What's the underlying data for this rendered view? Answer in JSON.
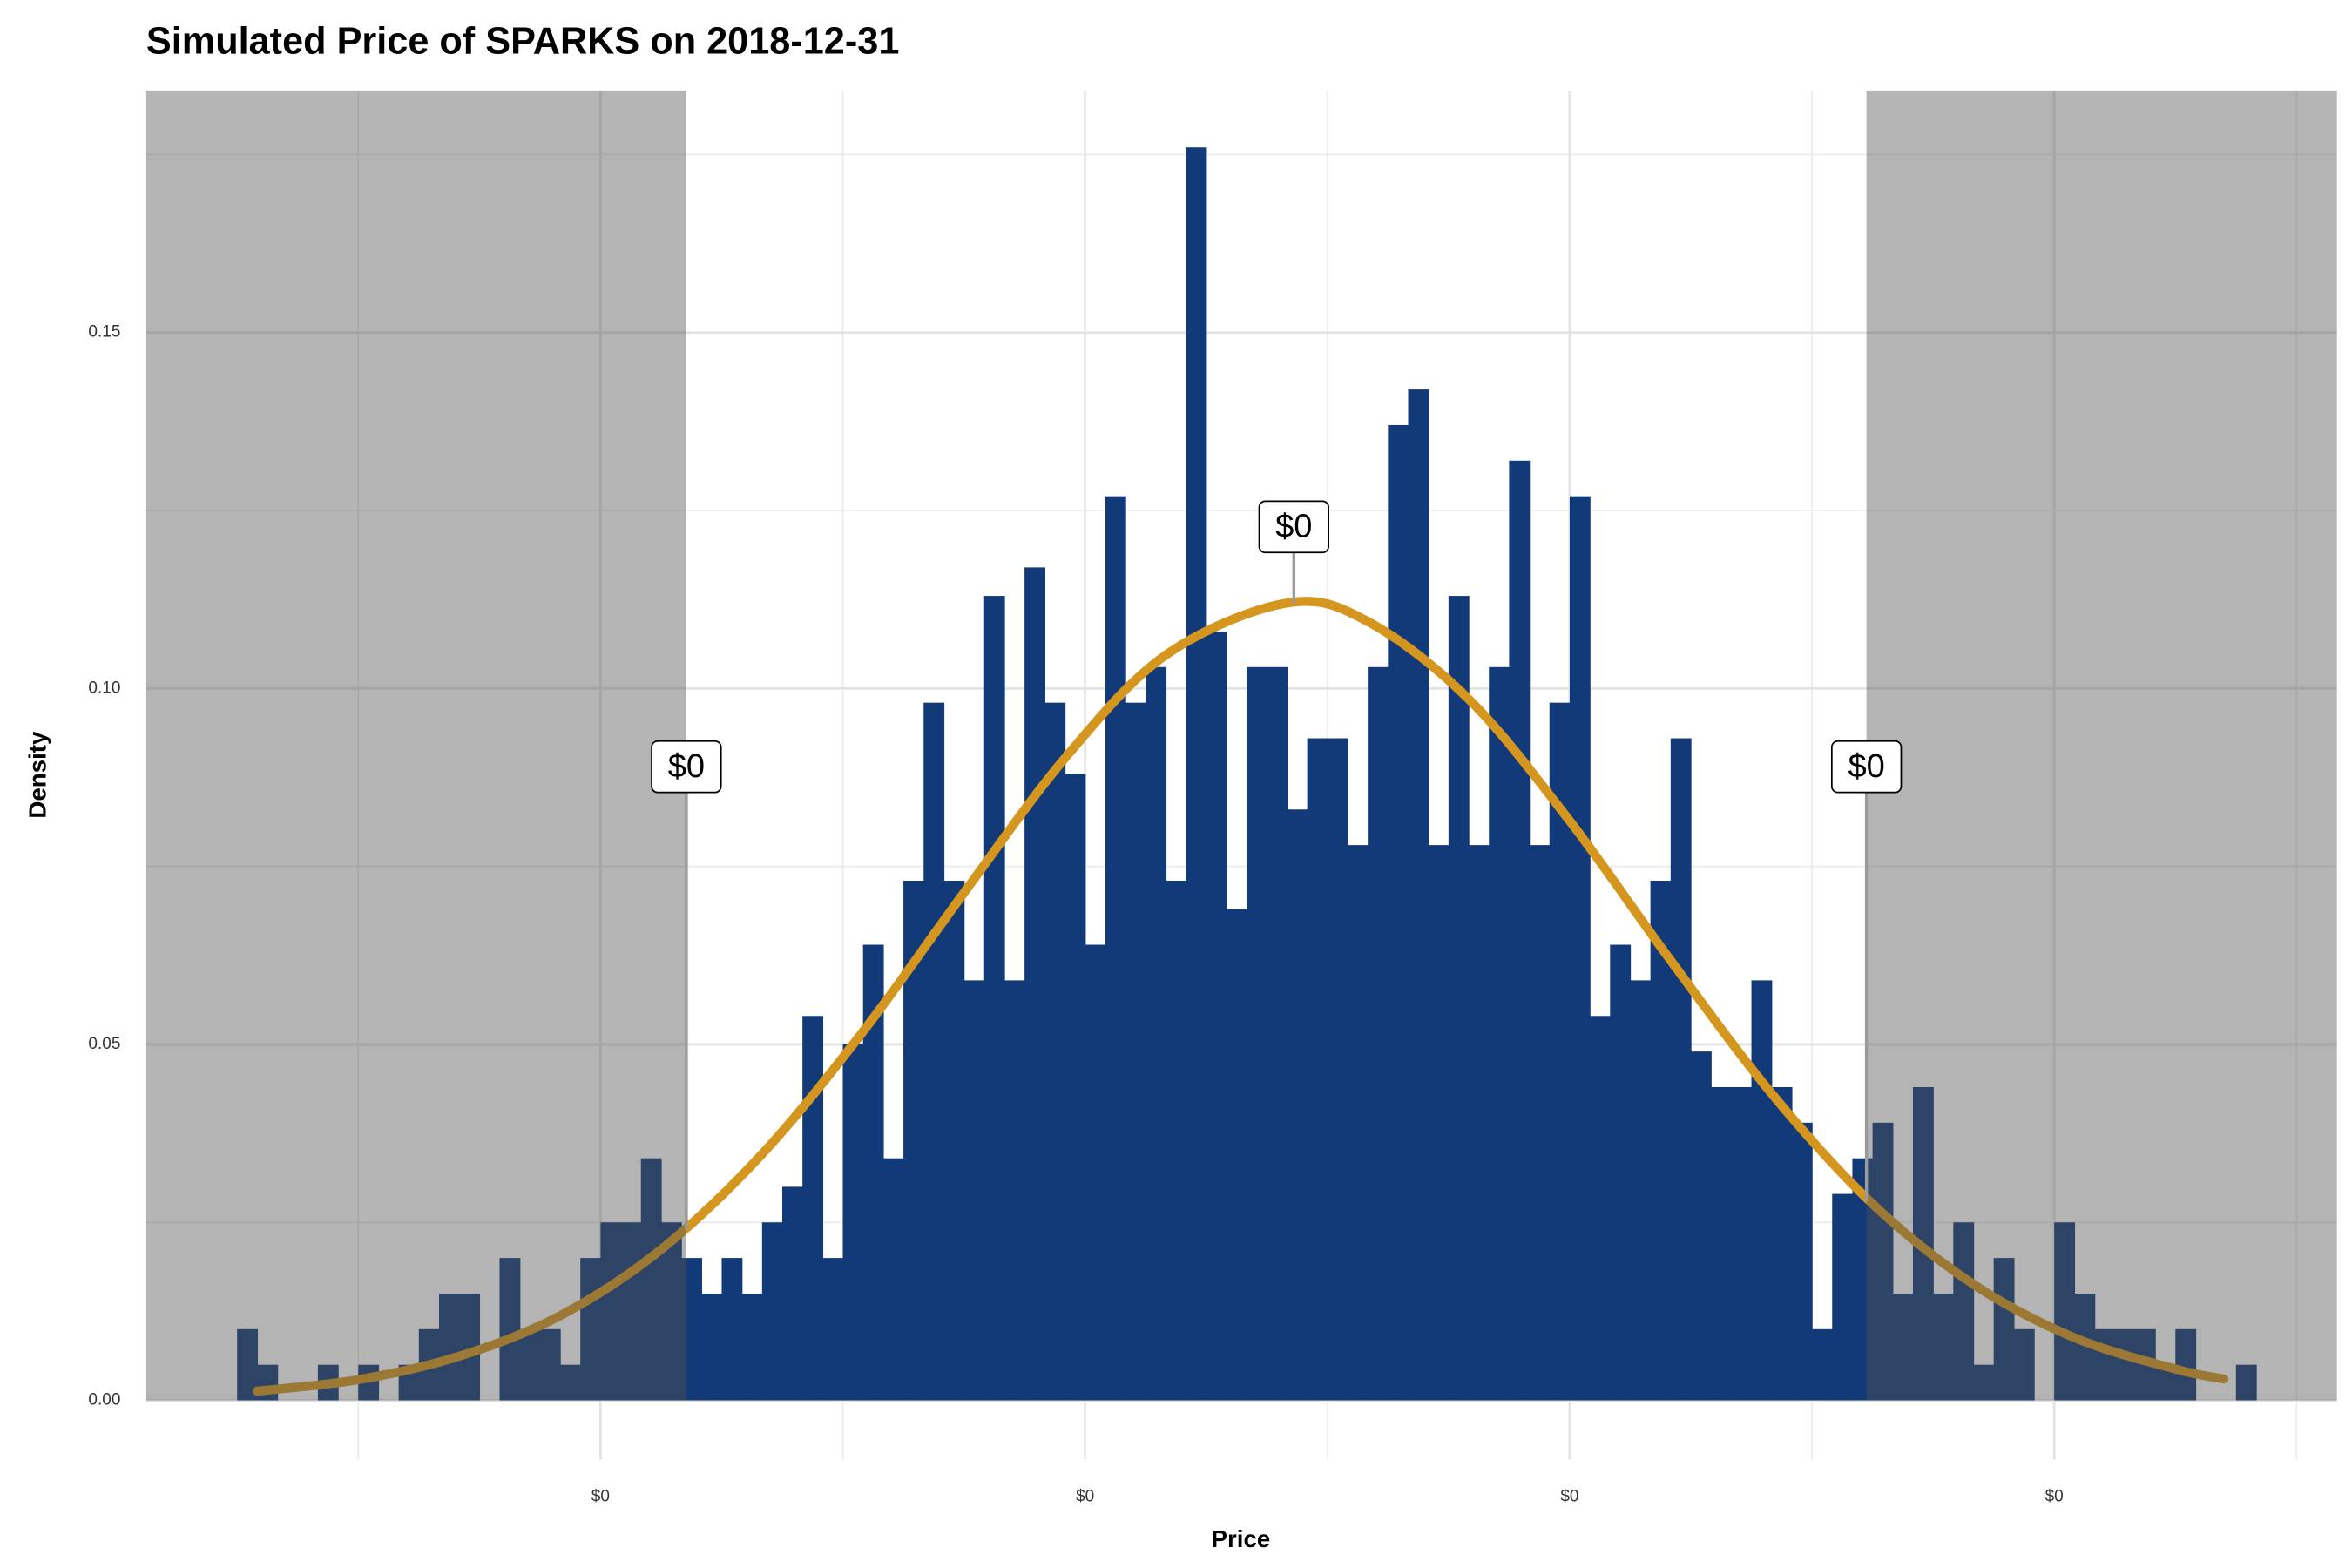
{
  "chart_data": {
    "type": "histogram",
    "title": "Simulated Price of SPARKS on 2018-12-31",
    "x_label": "Price",
    "y_label": "Density",
    "color": "#123a78",
    "bins": [
      0.0006,
      0.0007,
      0.0008,
      0.0009,
      0.001,
      0.0011,
      0.0012,
      0.0013,
      0.0014,
      0.0015,
      0.0016,
      0.0017,
      0.0018,
      0.0019,
      0.002,
      0.0021,
      0.0022,
      0.0023,
      0.0024,
      0.0025,
      0.0026,
      0.0027,
      0.0028,
      0.0029,
      0.003,
      0.0031,
      0.0032,
      0.0033,
      0.0034,
      0.0035,
      0.0036,
      0.0037,
      0.0038,
      0.0039,
      0.004,
      0.0041,
      0.0042,
      0.0043,
      0.0044,
      0.0045,
      0.0046,
      0.0047,
      0.0048,
      0.0049,
      0.005,
      0.0051,
      0.0052,
      0.0053,
      0.0054,
      0.0055,
      0.0056,
      0.0057,
      0.0058,
      0.0059,
      0.006,
      0.0061,
      0.0062,
      0.0063,
      0.0064,
      0.0065,
      0.0066,
      0.0067,
      0.0068,
      0.0069,
      0.007,
      0.0071,
      0.0072,
      0.0073,
      0.0074,
      0.0075,
      0.0076,
      0.0077,
      0.0078,
      0.0079,
      0.008,
      0.0081,
      0.0082,
      0.0083,
      0.0084,
      0.0085,
      0.0086,
      0.0087,
      0.0088,
      0.0089,
      0.009,
      0.0091,
      0.0092,
      0.0093,
      0.0094,
      0.0095,
      0.0096,
      0.0097,
      0.0098,
      0.0099,
      0.01,
      0.0101,
      0.0102,
      0.0103,
      0.0104,
      0.0105,
      0.0106
    ],
    "counts": [
      0.01,
      0.005,
      0,
      0,
      0.005,
      0,
      0.005,
      0,
      0.005,
      0.01,
      0.015,
      0.015,
      0,
      0.02,
      0.01,
      0.01,
      0.005,
      0.02,
      0.025,
      0.025,
      0.034,
      0.025,
      0.02,
      0.015,
      0.02,
      0.015,
      0.025,
      0.03,
      0.054,
      0.02,
      0.05,
      0.064,
      0.034,
      0.073,
      0.098,
      0.073,
      0.059,
      0.113,
      0.059,
      0.117,
      0.098,
      0.088,
      0.064,
      0.127,
      0.098,
      0.103,
      0.073,
      0.176,
      0.108,
      0.069,
      0.103,
      0.103,
      0.083,
      0.093,
      0.093,
      0.078,
      0.103,
      0.137,
      0.142,
      0.078,
      0.113,
      0.078,
      0.103,
      0.132,
      0.078,
      0.098,
      0.127,
      0.054,
      0.064,
      0.059,
      0.073,
      0.093,
      0.049,
      0.044,
      0.044,
      0.059,
      0.044,
      0.039,
      0.01,
      0.029,
      0.034,
      0.039,
      0.015,
      0.044,
      0.015,
      0.025,
      0.005,
      0.02,
      0.01,
      0,
      0.025,
      0.015,
      0.01,
      0.01,
      0.01,
      0.005,
      0.01,
      0,
      0,
      0.005
    ],
    "xlim": [
      0.00015,
      0.011
    ],
    "ylim": [
      -0.0083,
      0.184
    ],
    "xticks": [
      {
        "value": 0.0024,
        "label": "$0"
      },
      {
        "value": 0.0048,
        "label": "$0"
      },
      {
        "value": 0.0072,
        "label": "$0"
      },
      {
        "value": 0.0096,
        "label": "$0"
      }
    ],
    "yticks": [
      {
        "value": 0,
        "label": "0.00"
      },
      {
        "value": 0.05,
        "label": "0.05"
      },
      {
        "value": 0.1,
        "label": "0.10"
      },
      {
        "value": 0.15,
        "label": "0.15"
      }
    ],
    "x_minor_grid": [
      0.0012,
      0.0036,
      0.006,
      0.0084,
      0.0108
    ],
    "y_minor_grid": [
      0.025,
      0.075,
      0.125,
      0.175
    ],
    "grid": true,
    "curve": {
      "color": "#d4961f",
      "x": [
        0.0007,
        0.0012,
        0.0017,
        0.0022,
        0.0027,
        0.0032,
        0.0037,
        0.0042,
        0.0047,
        0.0052,
        0.0058,
        0.0062,
        0.0067,
        0.0072,
        0.0077,
        0.0082,
        0.0087,
        0.0092,
        0.0097,
        0.0102,
        0.01044
      ],
      "values": [
        0.0013,
        0.0029,
        0.0062,
        0.0119,
        0.0212,
        0.0346,
        0.0518,
        0.0713,
        0.0902,
        0.1047,
        0.112,
        0.1094,
        0.0985,
        0.0814,
        0.0618,
        0.0431,
        0.0276,
        0.0163,
        0.0088,
        0.0044,
        0.003
      ]
    },
    "shade_below": 0.002825,
    "shade_above": 0.00867,
    "shade_color": "#505050",
    "annotations": [
      {
        "label": "$0",
        "x": 0.002825,
        "y": 0.089,
        "y0": 0.024
      },
      {
        "label": "$0",
        "x": 0.005834,
        "y": 0.1227,
        "y0": 0.112
      },
      {
        "label": "$0",
        "x": 0.00867,
        "y": 0.089,
        "y0": 0.028
      }
    ]
  }
}
